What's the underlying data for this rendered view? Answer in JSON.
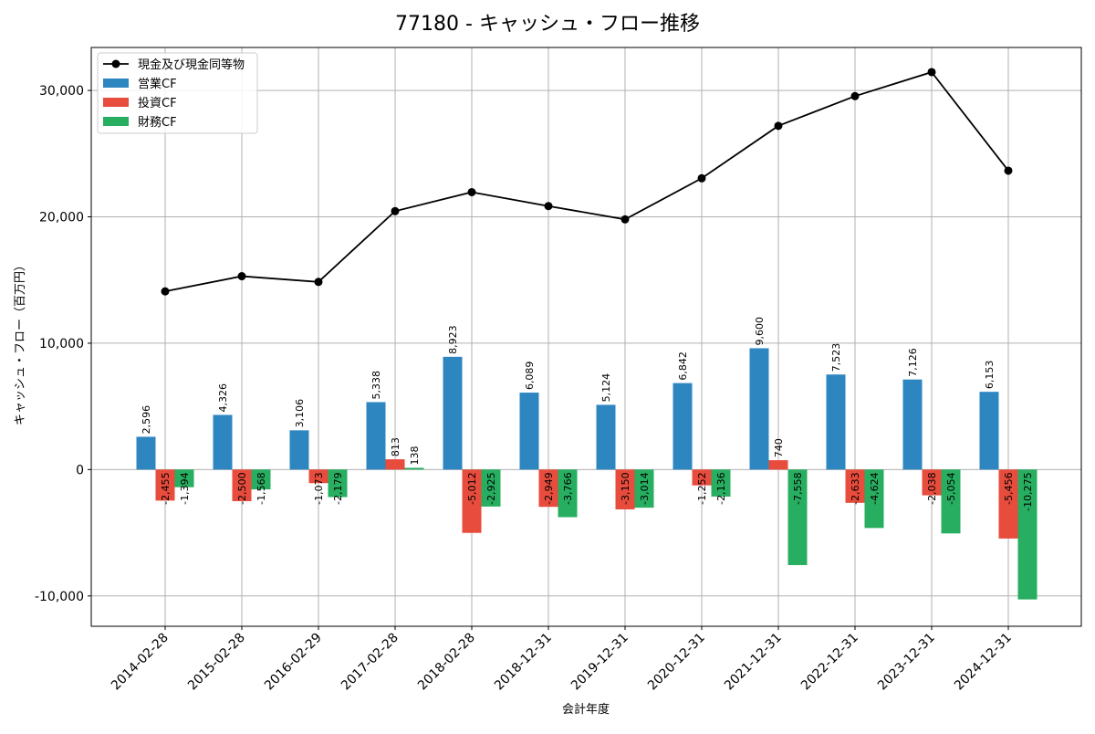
{
  "chart_data": {
    "type": "bar",
    "title": "77180 - キャッシュ・フロー推移",
    "xlabel": "会計年度",
    "ylabel": "キャッシュ・フロー（百万円）",
    "categories": [
      "2014-02-28",
      "2015-02-28",
      "2016-02-29",
      "2017-02-28",
      "2018-02-28",
      "2018-12-31",
      "2019-12-31",
      "2020-12-31",
      "2021-12-31",
      "2022-12-31",
      "2023-12-31",
      "2024-12-31"
    ],
    "ylim": [
      -12400,
      33400
    ],
    "yticks": [
      -10000,
      0,
      10000,
      20000,
      30000
    ],
    "ytick_labels": [
      "-10,000",
      "0",
      "10,000",
      "20,000",
      "30,000"
    ],
    "grid": true,
    "legend_position": "top-left",
    "series": [
      {
        "name": "営業CF",
        "kind": "bar",
        "color": "#2e86c1",
        "values": [
          2596,
          4326,
          3106,
          5338,
          8923,
          6089,
          5124,
          6842,
          9600,
          7523,
          7126,
          6153
        ],
        "labels": [
          "2,596",
          "4,326",
          "3,106",
          "5,338",
          "8,923",
          "6,089",
          "5,124",
          "6,842",
          "9,600",
          "7,523",
          "7,126",
          "6,153"
        ]
      },
      {
        "name": "投資CF",
        "kind": "bar",
        "color": "#e74c3c",
        "values": [
          -2455,
          -2500,
          -1073,
          813,
          -5012,
          -2949,
          -3150,
          -1252,
          740,
          -2633,
          -2038,
          -5456
        ],
        "labels": [
          "-2,455",
          "-2,500",
          "-1,073",
          "813",
          "-5,012",
          "-2,949",
          "-3,150",
          "-1,252",
          "740",
          "-2,633",
          "-2,038",
          "-5,456"
        ]
      },
      {
        "name": "財務CF",
        "kind": "bar",
        "color": "#27ae60",
        "values": [
          -1394,
          -1568,
          -2179,
          138,
          -2925,
          -3766,
          -3014,
          -2136,
          -7558,
          -4624,
          -5054,
          -10275
        ],
        "labels": [
          "-1,394",
          "-1,568",
          "-2,179",
          "138",
          "-2,925",
          "-3,766",
          "-3,014",
          "-2,136",
          "-7,558",
          "-4,624",
          "-5,054",
          "-10,275"
        ]
      },
      {
        "name": "現金及び現金同等物",
        "kind": "line",
        "color": "#000000",
        "values": [
          14100,
          15300,
          14850,
          20450,
          21950,
          20850,
          19800,
          23050,
          27200,
          29550,
          31450,
          23650
        ]
      }
    ]
  }
}
